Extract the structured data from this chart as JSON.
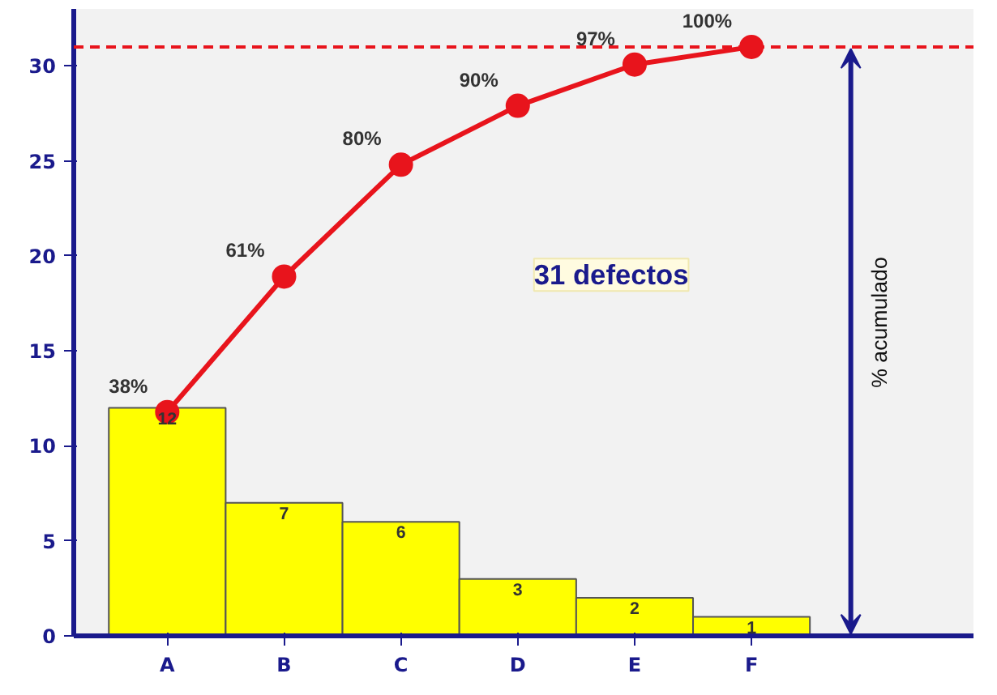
{
  "chart_data": {
    "type": "bar",
    "categories": [
      "A",
      "B",
      "C",
      "D",
      "E",
      "F"
    ],
    "series": [
      {
        "color": "#ffff00",
        "values": [
          12,
          7,
          6,
          3,
          2,
          1
        ],
        "data_labels": true
      },
      {
        "type": "line",
        "axis": "y2",
        "color": "#e8141c",
        "values": [
          38,
          61,
          80,
          90,
          97,
          100
        ],
        "value_labels": [
          "38%",
          "61%",
          "80%",
          "90%",
          "97%",
          "100%"
        ],
        "marker": "circle",
        "line_style": "solid"
      }
    ],
    "ylim": [
      0,
      33
    ],
    "yticks": [
      0,
      5,
      10,
      15,
      20,
      25,
      30
    ],
    "y2lim": [
      0,
      106.45
    ],
    "grid": false,
    "ref_lines": [
      {
        "axis": "y2",
        "value": 100,
        "color": "#e8141c",
        "line_style": "dashed"
      }
    ],
    "annotations": [
      "31 defectos",
      "% acumulado"
    ]
  }
}
